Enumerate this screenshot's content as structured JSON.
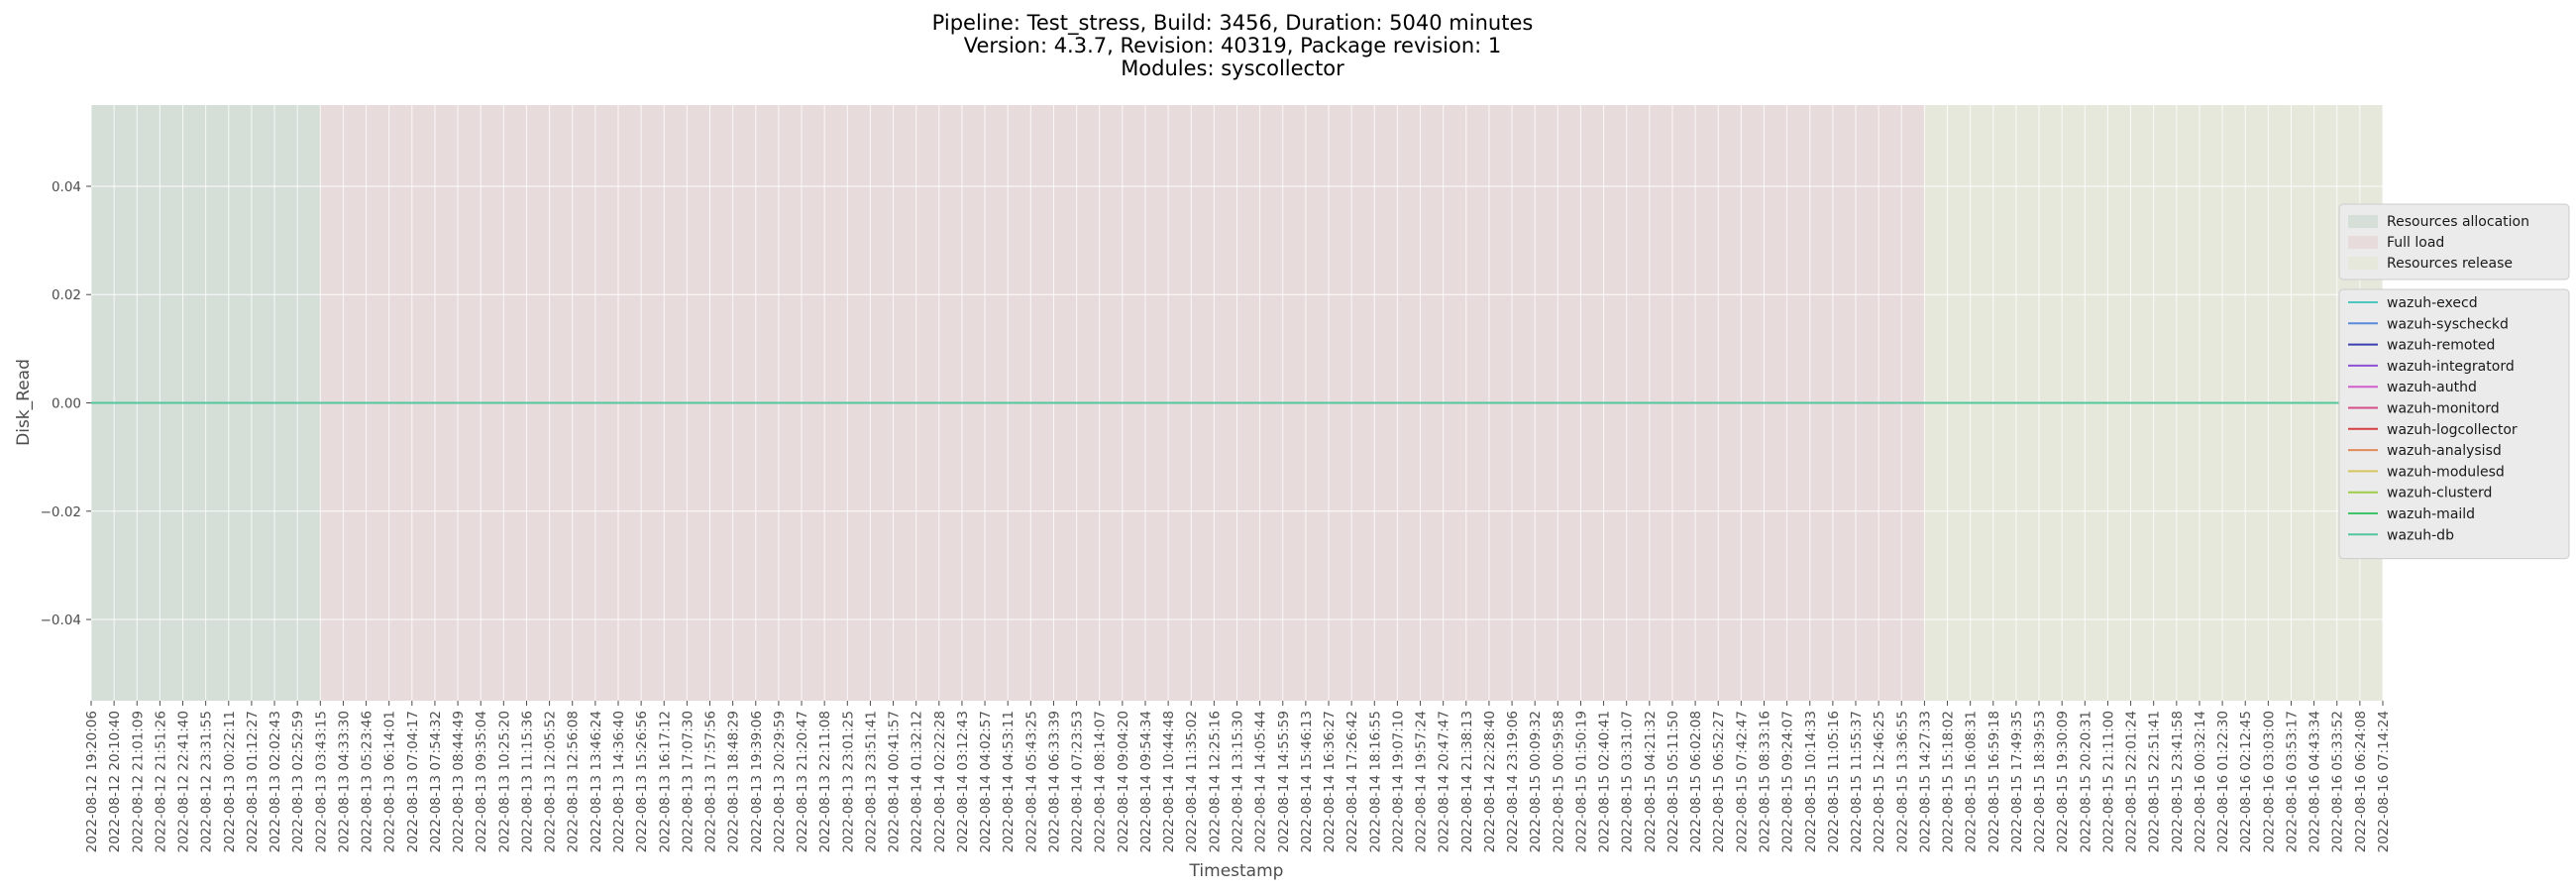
{
  "chart_data": {
    "type": "line",
    "title": [
      "Pipeline: Test_stress, Build: 3456, Duration: 5040 minutes",
      "Version: 4.3.7, Revision: 40319, Package revision: 1",
      "Modules: syscollector"
    ],
    "xlabel": "Timestamp",
    "ylabel": "Disk_Read",
    "ylim": [
      -0.055,
      0.055
    ],
    "yticks": [
      -0.04,
      -0.02,
      0.0,
      0.02,
      0.04
    ],
    "ytick_labels": [
      "−0.04",
      "−0.02",
      "0.00",
      "0.02",
      "0.04"
    ],
    "grid": true,
    "x": [
      "2022-08-12 19:20:06",
      "2022-08-12 20:10:40",
      "2022-08-12 21:01:09",
      "2022-08-12 21:51:26",
      "2022-08-12 22:41:40",
      "2022-08-12 23:31:55",
      "2022-08-13 00:22:11",
      "2022-08-13 01:12:27",
      "2022-08-13 02:02:43",
      "2022-08-13 02:52:59",
      "2022-08-13 03:43:15",
      "2022-08-13 04:33:30",
      "2022-08-13 05:23:46",
      "2022-08-13 06:14:01",
      "2022-08-13 07:04:17",
      "2022-08-13 07:54:32",
      "2022-08-13 08:44:49",
      "2022-08-13 09:35:04",
      "2022-08-13 10:25:20",
      "2022-08-13 11:15:36",
      "2022-08-13 12:05:52",
      "2022-08-13 12:56:08",
      "2022-08-13 13:46:24",
      "2022-08-13 14:36:40",
      "2022-08-13 15:26:56",
      "2022-08-13 16:17:12",
      "2022-08-13 17:07:30",
      "2022-08-13 17:57:56",
      "2022-08-13 18:48:29",
      "2022-08-13 19:39:06",
      "2022-08-13 20:29:59",
      "2022-08-13 21:20:47",
      "2022-08-13 22:11:08",
      "2022-08-13 23:01:25",
      "2022-08-13 23:51:41",
      "2022-08-14 00:41:57",
      "2022-08-14 01:32:12",
      "2022-08-14 02:22:28",
      "2022-08-14 03:12:43",
      "2022-08-14 04:02:57",
      "2022-08-14 04:53:11",
      "2022-08-14 05:43:25",
      "2022-08-14 06:33:39",
      "2022-08-14 07:23:53",
      "2022-08-14 08:14:07",
      "2022-08-14 09:04:20",
      "2022-08-14 09:54:34",
      "2022-08-14 10:44:48",
      "2022-08-14 11:35:02",
      "2022-08-14 12:25:16",
      "2022-08-14 13:15:30",
      "2022-08-14 14:05:44",
      "2022-08-14 14:55:59",
      "2022-08-14 15:46:13",
      "2022-08-14 16:36:27",
      "2022-08-14 17:26:42",
      "2022-08-14 18:16:55",
      "2022-08-14 19:07:10",
      "2022-08-14 19:57:24",
      "2022-08-14 20:47:47",
      "2022-08-14 21:38:13",
      "2022-08-14 22:28:40",
      "2022-08-14 23:19:06",
      "2022-08-15 00:09:32",
      "2022-08-15 00:59:58",
      "2022-08-15 01:50:19",
      "2022-08-15 02:40:41",
      "2022-08-15 03:31:07",
      "2022-08-15 04:21:32",
      "2022-08-15 05:11:50",
      "2022-08-15 06:02:08",
      "2022-08-15 06:52:27",
      "2022-08-15 07:42:47",
      "2022-08-15 08:33:16",
      "2022-08-15 09:24:07",
      "2022-08-15 10:14:33",
      "2022-08-15 11:05:16",
      "2022-08-15 11:55:37",
      "2022-08-15 12:46:25",
      "2022-08-15 13:36:55",
      "2022-08-15 14:27:33",
      "2022-08-15 15:18:02",
      "2022-08-15 16:08:31",
      "2022-08-15 16:59:18",
      "2022-08-15 17:49:35",
      "2022-08-15 18:39:53",
      "2022-08-15 19:30:09",
      "2022-08-15 20:20:31",
      "2022-08-15 21:11:00",
      "2022-08-15 22:01:24",
      "2022-08-15 22:51:41",
      "2022-08-15 23:41:58",
      "2022-08-16 00:32:14",
      "2022-08-16 01:22:30",
      "2022-08-16 02:12:45",
      "2022-08-16 03:03:00",
      "2022-08-16 03:53:17",
      "2022-08-16 04:43:34",
      "2022-08-16 05:33:52",
      "2022-08-16 06:24:08",
      "2022-08-16 07:14:24"
    ],
    "phases": [
      {
        "name": "Resources allocation",
        "color": "#c2d6c9",
        "start": "2022-08-12 19:20:06",
        "end": "2022-08-13 03:43:15"
      },
      {
        "name": "Full load",
        "color": "#e6cdd0",
        "start": "2022-08-13 03:43:15",
        "end": "2022-08-15 14:27:33"
      },
      {
        "name": "Resources release",
        "color": "#e3e5d0",
        "start": "2022-08-15 14:27:33",
        "end": "2022-08-16 07:14:24"
      }
    ],
    "series": [
      {
        "name": "wazuh-execd",
        "color": "#4fc5c0",
        "value": 0
      },
      {
        "name": "wazuh-syscheckd",
        "color": "#5b8ad6",
        "value": 0
      },
      {
        "name": "wazuh-remoted",
        "color": "#3b3fb0",
        "value": 0
      },
      {
        "name": "wazuh-integratord",
        "color": "#8d4fd6",
        "value": 0
      },
      {
        "name": "wazuh-authd",
        "color": "#cf5fcf",
        "value": 0
      },
      {
        "name": "wazuh-monitord",
        "color": "#d44f8a",
        "value": 0
      },
      {
        "name": "wazuh-logcollector",
        "color": "#d43f3f",
        "value": 0
      },
      {
        "name": "wazuh-analysisd",
        "color": "#e08a5a",
        "value": 0
      },
      {
        "name": "wazuh-modulesd",
        "color": "#d6c45e",
        "value": 0
      },
      {
        "name": "wazuh-clusterd",
        "color": "#9ccc4a",
        "value": 0
      },
      {
        "name": "wazuh-maild",
        "color": "#3fc46a",
        "value": 0
      },
      {
        "name": "wazuh-db",
        "color": "#52c79d",
        "value": 0
      }
    ],
    "background": "#ebebeb"
  }
}
